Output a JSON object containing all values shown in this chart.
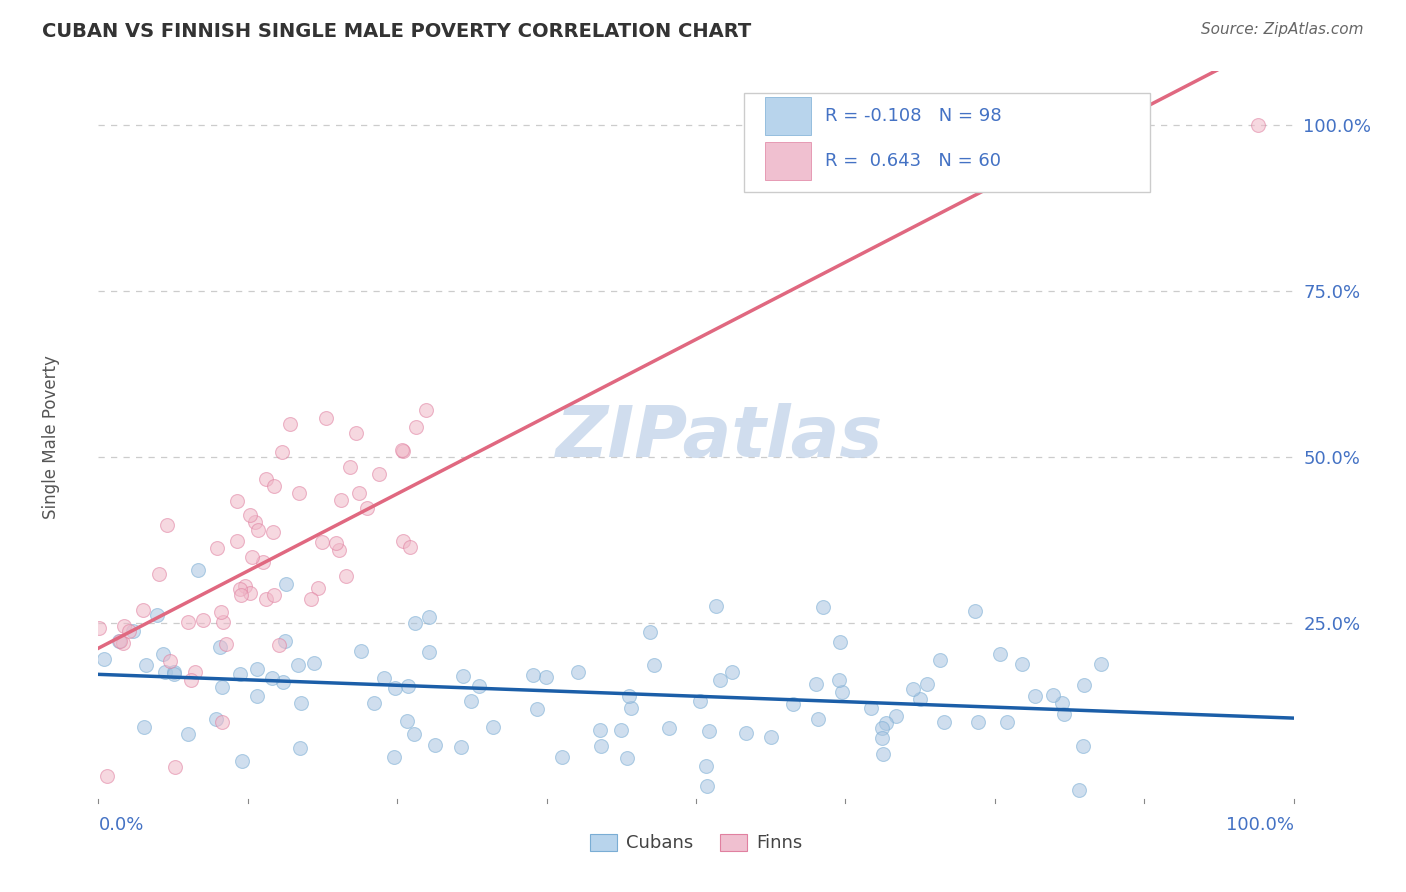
{
  "title": "CUBAN VS FINNISH SINGLE MALE POVERTY CORRELATION CHART",
  "source": "Source: ZipAtlas.com",
  "ylabel": "Single Male Poverty",
  "cubans": {
    "R": -0.108,
    "N": 98,
    "dot_color": "#a8c4e0",
    "dot_edge_color": "#7aadd4",
    "line_color": "#1b5ea8",
    "label": "Cubans",
    "legend_facecolor": "#b8d4ec",
    "legend_edgecolor": "#7aadd4"
  },
  "finns": {
    "R": 0.643,
    "N": 60,
    "dot_color": "#f0b8c8",
    "dot_edge_color": "#e080a0",
    "line_color": "#e06880",
    "label": "Finns",
    "legend_facecolor": "#f0c0d0",
    "legend_edgecolor": "#e080a0"
  },
  "legend_text_color": "#4472c4",
  "watermark_text": "ZIPatlas",
  "watermark_color": "#c8d8ec",
  "background_color": "#ffffff",
  "grid_color": "#cccccc",
  "axis_label_color": "#4472c4",
  "title_color": "#333333",
  "source_color": "#666666"
}
